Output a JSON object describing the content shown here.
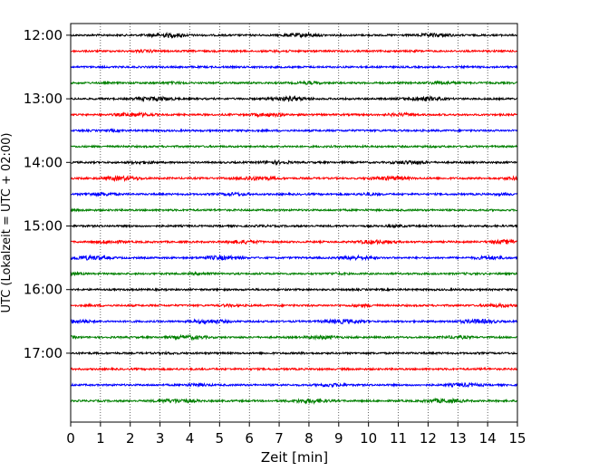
{
  "chart_data": {
    "type": "line",
    "title": "",
    "xlabel": "Zeit  [min]",
    "ylabel": "UTC (Lokalzeit = UTC + 02:00)",
    "xlim": [
      0,
      15
    ],
    "xticks": [
      0,
      1,
      2,
      3,
      4,
      5,
      6,
      7,
      8,
      9,
      10,
      11,
      12,
      13,
      14,
      15
    ],
    "yticks": [
      {
        "value": "12:00",
        "label": "12:00"
      },
      {
        "value": "13:00",
        "label": "13:00"
      },
      {
        "value": "14:00",
        "label": "14:00"
      },
      {
        "value": "15:00",
        "label": "15:00"
      },
      {
        "value": "16:00",
        "label": "16:00"
      },
      {
        "value": "17:00",
        "label": "17:00"
      }
    ],
    "ylim": [
      "11:49",
      "18:05"
    ],
    "grid": {
      "x": true,
      "y": false,
      "style": "dotted"
    },
    "series_colors": [
      "#000000",
      "#ff0000",
      "#0000ff",
      "#008000"
    ],
    "traces": [
      {
        "start": "12:00",
        "color": "#000000"
      },
      {
        "start": "12:15",
        "color": "#ff0000"
      },
      {
        "start": "12:30",
        "color": "#0000ff"
      },
      {
        "start": "12:45",
        "color": "#008000"
      },
      {
        "start": "13:00",
        "color": "#000000"
      },
      {
        "start": "13:15",
        "color": "#ff0000"
      },
      {
        "start": "13:30",
        "color": "#0000ff"
      },
      {
        "start": "13:45",
        "color": "#008000"
      },
      {
        "start": "14:00",
        "color": "#000000"
      },
      {
        "start": "14:15",
        "color": "#ff0000"
      },
      {
        "start": "14:30",
        "color": "#0000ff"
      },
      {
        "start": "14:45",
        "color": "#008000"
      },
      {
        "start": "15:00",
        "color": "#000000"
      },
      {
        "start": "15:15",
        "color": "#ff0000"
      },
      {
        "start": "15:30",
        "color": "#0000ff"
      },
      {
        "start": "15:45",
        "color": "#008000"
      },
      {
        "start": "16:00",
        "color": "#000000"
      },
      {
        "start": "16:15",
        "color": "#ff0000"
      },
      {
        "start": "16:30",
        "color": "#0000ff"
      },
      {
        "start": "16:45",
        "color": "#008000"
      },
      {
        "start": "17:00",
        "color": "#000000"
      },
      {
        "start": "17:15",
        "color": "#ff0000"
      },
      {
        "start": "17:30",
        "color": "#0000ff"
      },
      {
        "start": "17:45",
        "color": "#008000"
      }
    ]
  }
}
